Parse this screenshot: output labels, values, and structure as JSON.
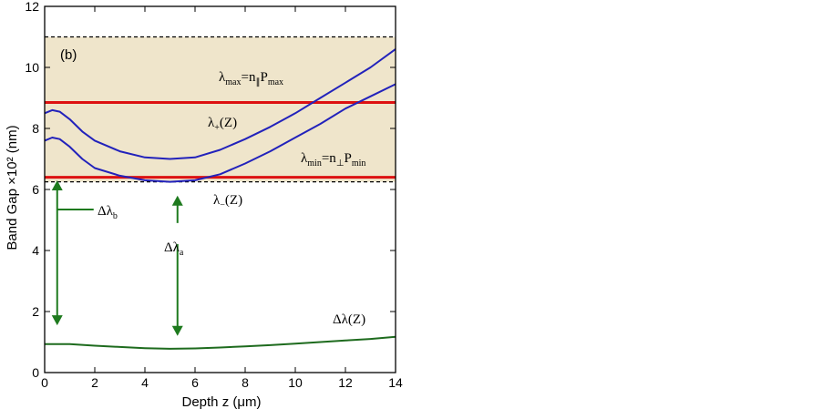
{
  "chart_data": {
    "type": "line",
    "panel_label": "(b)",
    "xlabel": "Depth z (μm)",
    "ylabel": "Band Gap ×10² (nm)",
    "xlim": [
      0,
      14
    ],
    "ylim": [
      0,
      12
    ],
    "xticks": [
      0,
      2,
      4,
      6,
      8,
      10,
      12,
      14
    ],
    "yticks": [
      0,
      2,
      4,
      6,
      8,
      10,
      12
    ],
    "grid": false,
    "colors": {
      "band_fill": "#efe5cb",
      "lambda_curves": "#2222bb",
      "limit_lines": "#dd1111",
      "difference_curve": "#1e6b1e",
      "arrows": "#1e7a1e",
      "dashed": "#000000"
    },
    "dashed_lines": [
      11.0,
      6.25
    ],
    "horizontal_lines": [
      {
        "label_main": "λ",
        "label_sub": "max",
        "label_rest": "=n",
        "label_sub2": "∥",
        "label_end": "P",
        "label_sub3": "max",
        "y": 8.85
      },
      {
        "label_main": "λ",
        "label_sub": "min",
        "label_rest": "=n",
        "label_sub2": "⊥",
        "label_end": "P",
        "label_sub3": "min",
        "y": 6.4
      }
    ],
    "series": [
      {
        "label_main": "λ",
        "label_sub": "+",
        "label_end": "(Z)",
        "x": [
          0,
          0.3,
          0.6,
          1,
          1.5,
          2,
          3,
          4,
          5,
          6,
          7,
          8,
          9,
          10,
          11,
          12,
          13,
          14
        ],
        "y": [
          8.5,
          8.6,
          8.55,
          8.3,
          7.9,
          7.6,
          7.25,
          7.05,
          7.0,
          7.05,
          7.3,
          7.65,
          8.05,
          8.5,
          9.0,
          9.5,
          10.0,
          10.6
        ]
      },
      {
        "label_main": "λ",
        "label_sub": "−",
        "label_end": "(Z)",
        "x": [
          0,
          0.3,
          0.6,
          1,
          1.5,
          2,
          3,
          4,
          5,
          6,
          7,
          8,
          9,
          10,
          11,
          12,
          13,
          14
        ],
        "y": [
          7.6,
          7.7,
          7.65,
          7.4,
          7.0,
          6.7,
          6.45,
          6.3,
          6.25,
          6.3,
          6.5,
          6.85,
          7.25,
          7.7,
          8.15,
          8.65,
          9.05,
          9.45
        ]
      },
      {
        "label_main": "Δλ",
        "label_sub": "",
        "label_end": "(Z)",
        "x": [
          0,
          1,
          2,
          3,
          4,
          5,
          6,
          7,
          8,
          9,
          10,
          11,
          12,
          13,
          14
        ],
        "y": [
          0.93,
          0.93,
          0.88,
          0.84,
          0.8,
          0.78,
          0.79,
          0.82,
          0.86,
          0.9,
          0.95,
          1.0,
          1.05,
          1.1,
          1.17
        ]
      }
    ],
    "annotations": [
      {
        "label_main": "Δλ",
        "label_sub": "b",
        "x": 0.5,
        "y_from": 6.3,
        "y_to": 1.55
      },
      {
        "label_main": "Δλ",
        "label_sub": "a",
        "x": 5.3,
        "y_from": 5.7,
        "y_to": 1.2,
        "up_from": 4.9,
        "up_to": 5.8
      }
    ]
  }
}
